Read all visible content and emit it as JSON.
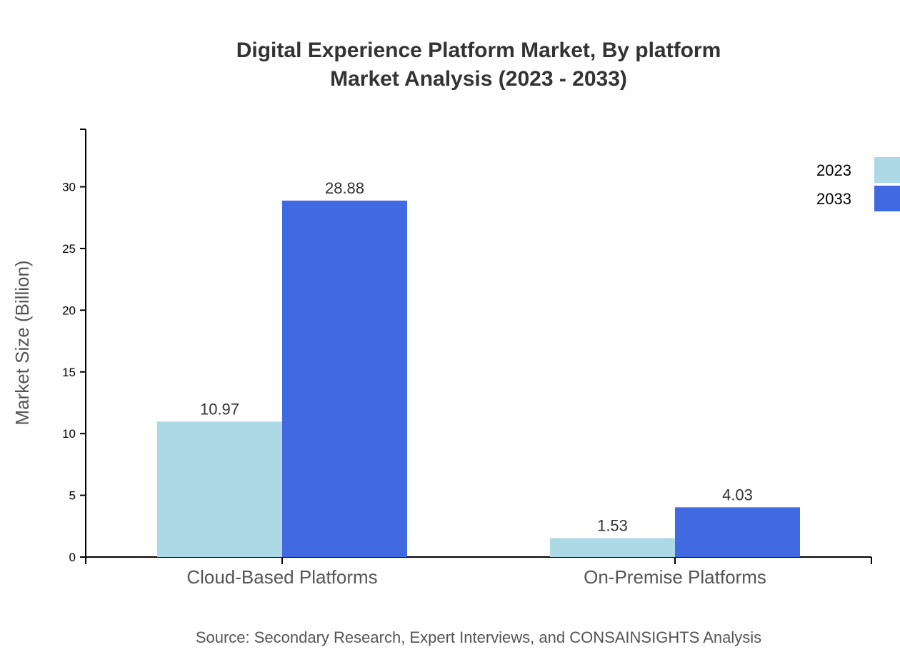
{
  "chart_data": {
    "type": "bar",
    "title": "Digital Experience Platform Market, By platform",
    "subtitle": "Market Analysis (2023 - 2033)",
    "xlabel": "",
    "ylabel": "Market Size (Billion)",
    "categories": [
      "Cloud-Based Platforms",
      "On-Premise Platforms"
    ],
    "series": [
      {
        "name": "2023",
        "values": [
          10.97,
          1.53
        ],
        "color": "#add8e6"
      },
      {
        "name": "2033",
        "values": [
          28.88,
          4.03
        ],
        "color": "#4169e1"
      }
    ],
    "ylim": [
      0,
      34.66
    ],
    "yticks": [
      0,
      5,
      10,
      15,
      20,
      25,
      30
    ],
    "grid": false,
    "legend": "top-right",
    "source": "Source: Secondary Research, Expert Interviews, and CONSAINSIGHTS Analysis"
  }
}
